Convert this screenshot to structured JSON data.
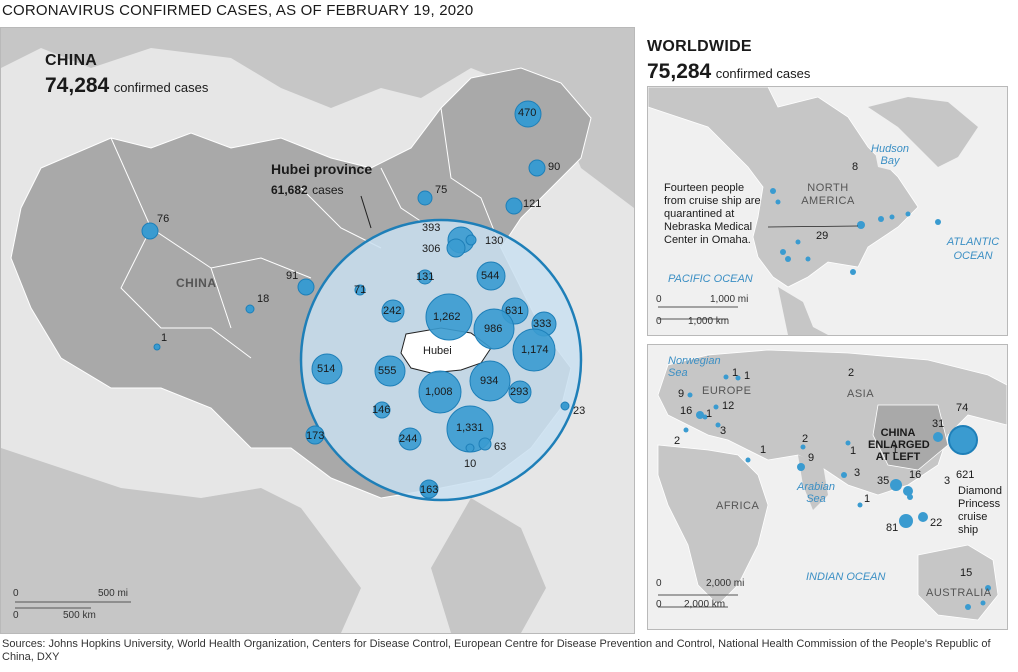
{
  "title": "CORONAVIRUS CONFIRMED CASES, AS OF FEBRUARY 19, 2020",
  "china_panel": {
    "heading": "CHINA",
    "count": "74,284",
    "count_label": "confirmed cases",
    "map_label": "CHINA",
    "hubei_title": "Hubei province",
    "hubei_count": "61,682",
    "hubei_count_label": "cases",
    "hubei_map_label": "Hubei",
    "provinces_outside": [
      {
        "label": "470"
      },
      {
        "label": "90"
      },
      {
        "label": "75"
      },
      {
        "label": "121"
      },
      {
        "label": "76"
      },
      {
        "label": "91"
      },
      {
        "label": "18"
      },
      {
        "label": "1"
      },
      {
        "label": "23"
      },
      {
        "label": "173"
      },
      {
        "label": "163"
      }
    ],
    "provinces_inside": [
      {
        "label": "393"
      },
      {
        "label": "306"
      },
      {
        "label": "130"
      },
      {
        "label": "131"
      },
      {
        "label": "544"
      },
      {
        "label": "71"
      },
      {
        "label": "242"
      },
      {
        "label": "1,262"
      },
      {
        "label": "631"
      },
      {
        "label": "333"
      },
      {
        "label": "986"
      },
      {
        "label": "1,174"
      },
      {
        "label": "514"
      },
      {
        "label": "555"
      },
      {
        "label": "934"
      },
      {
        "label": "1,008"
      },
      {
        "label": "293"
      },
      {
        "label": "146"
      },
      {
        "label": "244"
      },
      {
        "label": "1,331"
      },
      {
        "label": "63"
      },
      {
        "label": "10"
      }
    ],
    "scale_mi": "500 mi",
    "scale_km": "500 km",
    "scale_zero": "0"
  },
  "worldwide_panel": {
    "heading": "WORLDWIDE",
    "count": "75,284",
    "count_label": "confirmed cases",
    "north_america": {
      "label": "NORTH AMERICA",
      "hudson": "Hudson Bay",
      "atlantic": "ATLANTIC OCEAN",
      "pacific": "PACIFIC OCEAN",
      "canada_count": "8",
      "us_count": "29",
      "note": "Fourteen people from cruise ship are quarantined at Nebraska Medical Center in Omaha.",
      "scale_mi": "1,000 mi",
      "scale_km": "1,000 km",
      "scale_zero": "0"
    },
    "eurasia": {
      "norwegian": "Norwegian Sea",
      "europe": "EUROPE",
      "asia": "ASIA",
      "africa": "AFRICA",
      "arabian": "Arabian Sea",
      "indian": "INDIAN OCEAN",
      "australia": "AUSTRALIA",
      "china_note": "CHINA ENLARGED AT LEFT",
      "ship_note": "Diamond Princess cruise ship",
      "ship_count": "621",
      "counts": [
        "1",
        "1",
        "2",
        "9",
        "16",
        "1",
        "12",
        "3",
        "2",
        "1",
        "2",
        "9",
        "1",
        "3",
        "31",
        "74",
        "1",
        "35",
        "16",
        "3",
        "1",
        "81",
        "22",
        "15"
      ],
      "scale_mi": "2,000 mi",
      "scale_km": "2,000 km",
      "scale_zero": "0"
    }
  },
  "sources": "Sources: Johns Hopkins University, World Health Organization, Centers for Disease Control, European Centre for Disease Prevention and Control, National Health Commission of the People's Republic of China, DXY",
  "colors": {
    "land": "#a9a9a9",
    "sea": "#e6e6e6",
    "bubble": "#3a9bd0",
    "circle": "#c9dff0",
    "ring": "#1e7fb8"
  }
}
